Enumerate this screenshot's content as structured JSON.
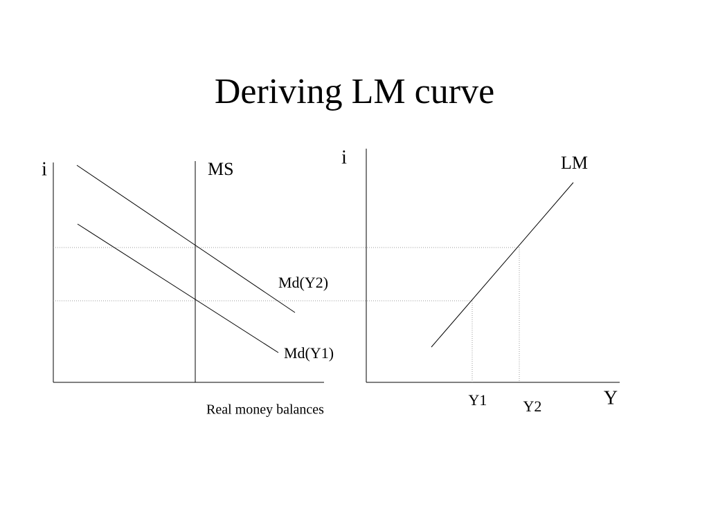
{
  "title": "Deriving LM curve",
  "left_panel": {
    "y_axis_label": "i",
    "supply_label": "MS",
    "demand_labels": [
      "Md(Y2)",
      "Md(Y1)"
    ],
    "x_axis_label": "Real money balances"
  },
  "right_panel": {
    "y_axis_label": "i",
    "curve_label": "LM",
    "x_tick_labels": [
      "Y1",
      "Y2"
    ],
    "x_axis_label": "Y"
  }
}
